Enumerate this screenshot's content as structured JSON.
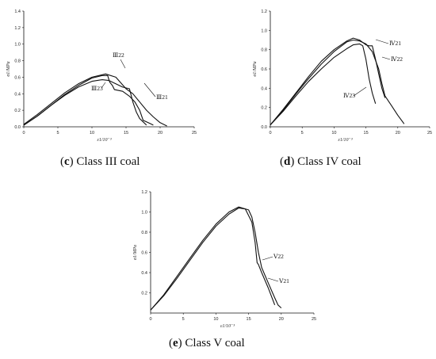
{
  "chart_data": [
    {
      "type": "line",
      "caption_letter": "c",
      "caption_text": "Class III coal",
      "xlabel": "ε1/10⁻³",
      "ylabel": "σ1/MPa",
      "xlim": [
        0,
        25
      ],
      "ylim": [
        0,
        1.4
      ],
      "xticks": [
        "0",
        "5",
        "10",
        "15",
        "20",
        "25"
      ],
      "yticks": [
        "0.0",
        "0.2",
        "0.4",
        "0.6",
        "0.8",
        "1.0",
        "1.2",
        "1.4"
      ],
      "series": [
        {
          "name": "Ⅲ22",
          "x": [
            0,
            2,
            4,
            6,
            8,
            10,
            11.5,
            12.3,
            12.6,
            13.0,
            13.3,
            14.5,
            15.5,
            16.3,
            17.0,
            17.5,
            18.5,
            19.0
          ],
          "y": [
            0.02,
            0.13,
            0.26,
            0.39,
            0.5,
            0.59,
            0.62,
            0.62,
            0.54,
            0.5,
            0.45,
            0.43,
            0.37,
            0.3,
            0.2,
            0.08,
            0.04,
            0.02
          ]
        },
        {
          "name": "Ⅲ23",
          "x": [
            0,
            2,
            4,
            6,
            8,
            10,
            11.5,
            12.5,
            13.5,
            14.5,
            15.5,
            16.0,
            16.5,
            17.0,
            17.5,
            18.0
          ],
          "y": [
            0.02,
            0.13,
            0.26,
            0.38,
            0.48,
            0.55,
            0.57,
            0.56,
            0.52,
            0.48,
            0.46,
            0.3,
            0.18,
            0.1,
            0.06,
            0.02
          ]
        },
        {
          "name": "Ⅲ21",
          "x": [
            0,
            2,
            4,
            6,
            8,
            10,
            12,
            13.5,
            15,
            16,
            17,
            18,
            19,
            20,
            21
          ],
          "y": [
            0.03,
            0.15,
            0.28,
            0.41,
            0.52,
            0.6,
            0.64,
            0.6,
            0.46,
            0.4,
            0.3,
            0.2,
            0.12,
            0.05,
            0.01
          ]
        }
      ],
      "annotations": [
        "Ⅲ22",
        "Ⅲ23",
        "Ⅲ21"
      ]
    },
    {
      "type": "line",
      "caption_letter": "d",
      "caption_text": "Class IV coal",
      "xlabel": "ε1/10⁻³",
      "ylabel": "σ1/MPa",
      "xlim": [
        0,
        25
      ],
      "ylim": [
        0,
        1.2
      ],
      "xticks": [
        "0",
        "5",
        "10",
        "15",
        "20",
        "25"
      ],
      "yticks": [
        "0.0",
        "0.2",
        "0.4",
        "0.6",
        "0.8",
        "1.0",
        "1.2"
      ],
      "series": [
        {
          "name": "Ⅳ21",
          "x": [
            0,
            2,
            4,
            6,
            8,
            10,
            12,
            13,
            14,
            15,
            15.5,
            16,
            16.5,
            17,
            17.5,
            18
          ],
          "y": [
            0.02,
            0.18,
            0.35,
            0.52,
            0.68,
            0.8,
            0.89,
            0.92,
            0.9,
            0.85,
            0.84,
            0.84,
            0.7,
            0.55,
            0.4,
            0.3
          ]
        },
        {
          "name": "Ⅳ22",
          "x": [
            0,
            2,
            4,
            6,
            8,
            10,
            12,
            13,
            14,
            15,
            16,
            17,
            17.5,
            18,
            19,
            20,
            21
          ],
          "y": [
            0.02,
            0.17,
            0.34,
            0.5,
            0.65,
            0.78,
            0.88,
            0.9,
            0.89,
            0.86,
            0.78,
            0.6,
            0.45,
            0.32,
            0.22,
            0.12,
            0.03
          ]
        },
        {
          "name": "Ⅳ23",
          "x": [
            0,
            2,
            4,
            6,
            8,
            10,
            12,
            13,
            14,
            14.5,
            15,
            15.5,
            16,
            16.5
          ],
          "y": [
            0.02,
            0.16,
            0.32,
            0.47,
            0.6,
            0.72,
            0.81,
            0.85,
            0.86,
            0.84,
            0.7,
            0.5,
            0.35,
            0.24
          ]
        }
      ],
      "annotations": [
        "Ⅳ21",
        "Ⅳ22",
        "Ⅳ23"
      ]
    },
    {
      "type": "line",
      "caption_letter": "e",
      "caption_text": "Class V coal",
      "xlabel": "ε1/10⁻³",
      "ylabel": "σ1/MPa",
      "xlim": [
        0,
        25
      ],
      "ylim": [
        0,
        1.2
      ],
      "xticks": [
        "0",
        "5",
        "10",
        "15",
        "20",
        "25"
      ],
      "yticks": [
        "0.2",
        "0.4",
        "0.6",
        "0.8",
        "1.0",
        "1.2"
      ],
      "series": [
        {
          "name": "Ⅴ22",
          "x": [
            0,
            2,
            4,
            6,
            8,
            10,
            12,
            13.5,
            14.5,
            15.5,
            16,
            16.3,
            16.5,
            17,
            18,
            19
          ],
          "y": [
            0.03,
            0.17,
            0.34,
            0.52,
            0.7,
            0.86,
            0.98,
            1.04,
            1.03,
            0.9,
            0.7,
            0.5,
            0.48,
            0.4,
            0.25,
            0.08
          ]
        },
        {
          "name": "Ⅴ21",
          "x": [
            0,
            2,
            4,
            6,
            8,
            10,
            12,
            13.5,
            15,
            15.5,
            16,
            16.5,
            17,
            18,
            19,
            19.5,
            20
          ],
          "y": [
            0.03,
            0.18,
            0.36,
            0.54,
            0.72,
            0.88,
            1.0,
            1.05,
            1.02,
            0.95,
            0.8,
            0.6,
            0.45,
            0.3,
            0.15,
            0.08,
            0.05
          ]
        }
      ],
      "annotations": [
        "Ⅴ22",
        "Ⅴ21"
      ]
    }
  ]
}
